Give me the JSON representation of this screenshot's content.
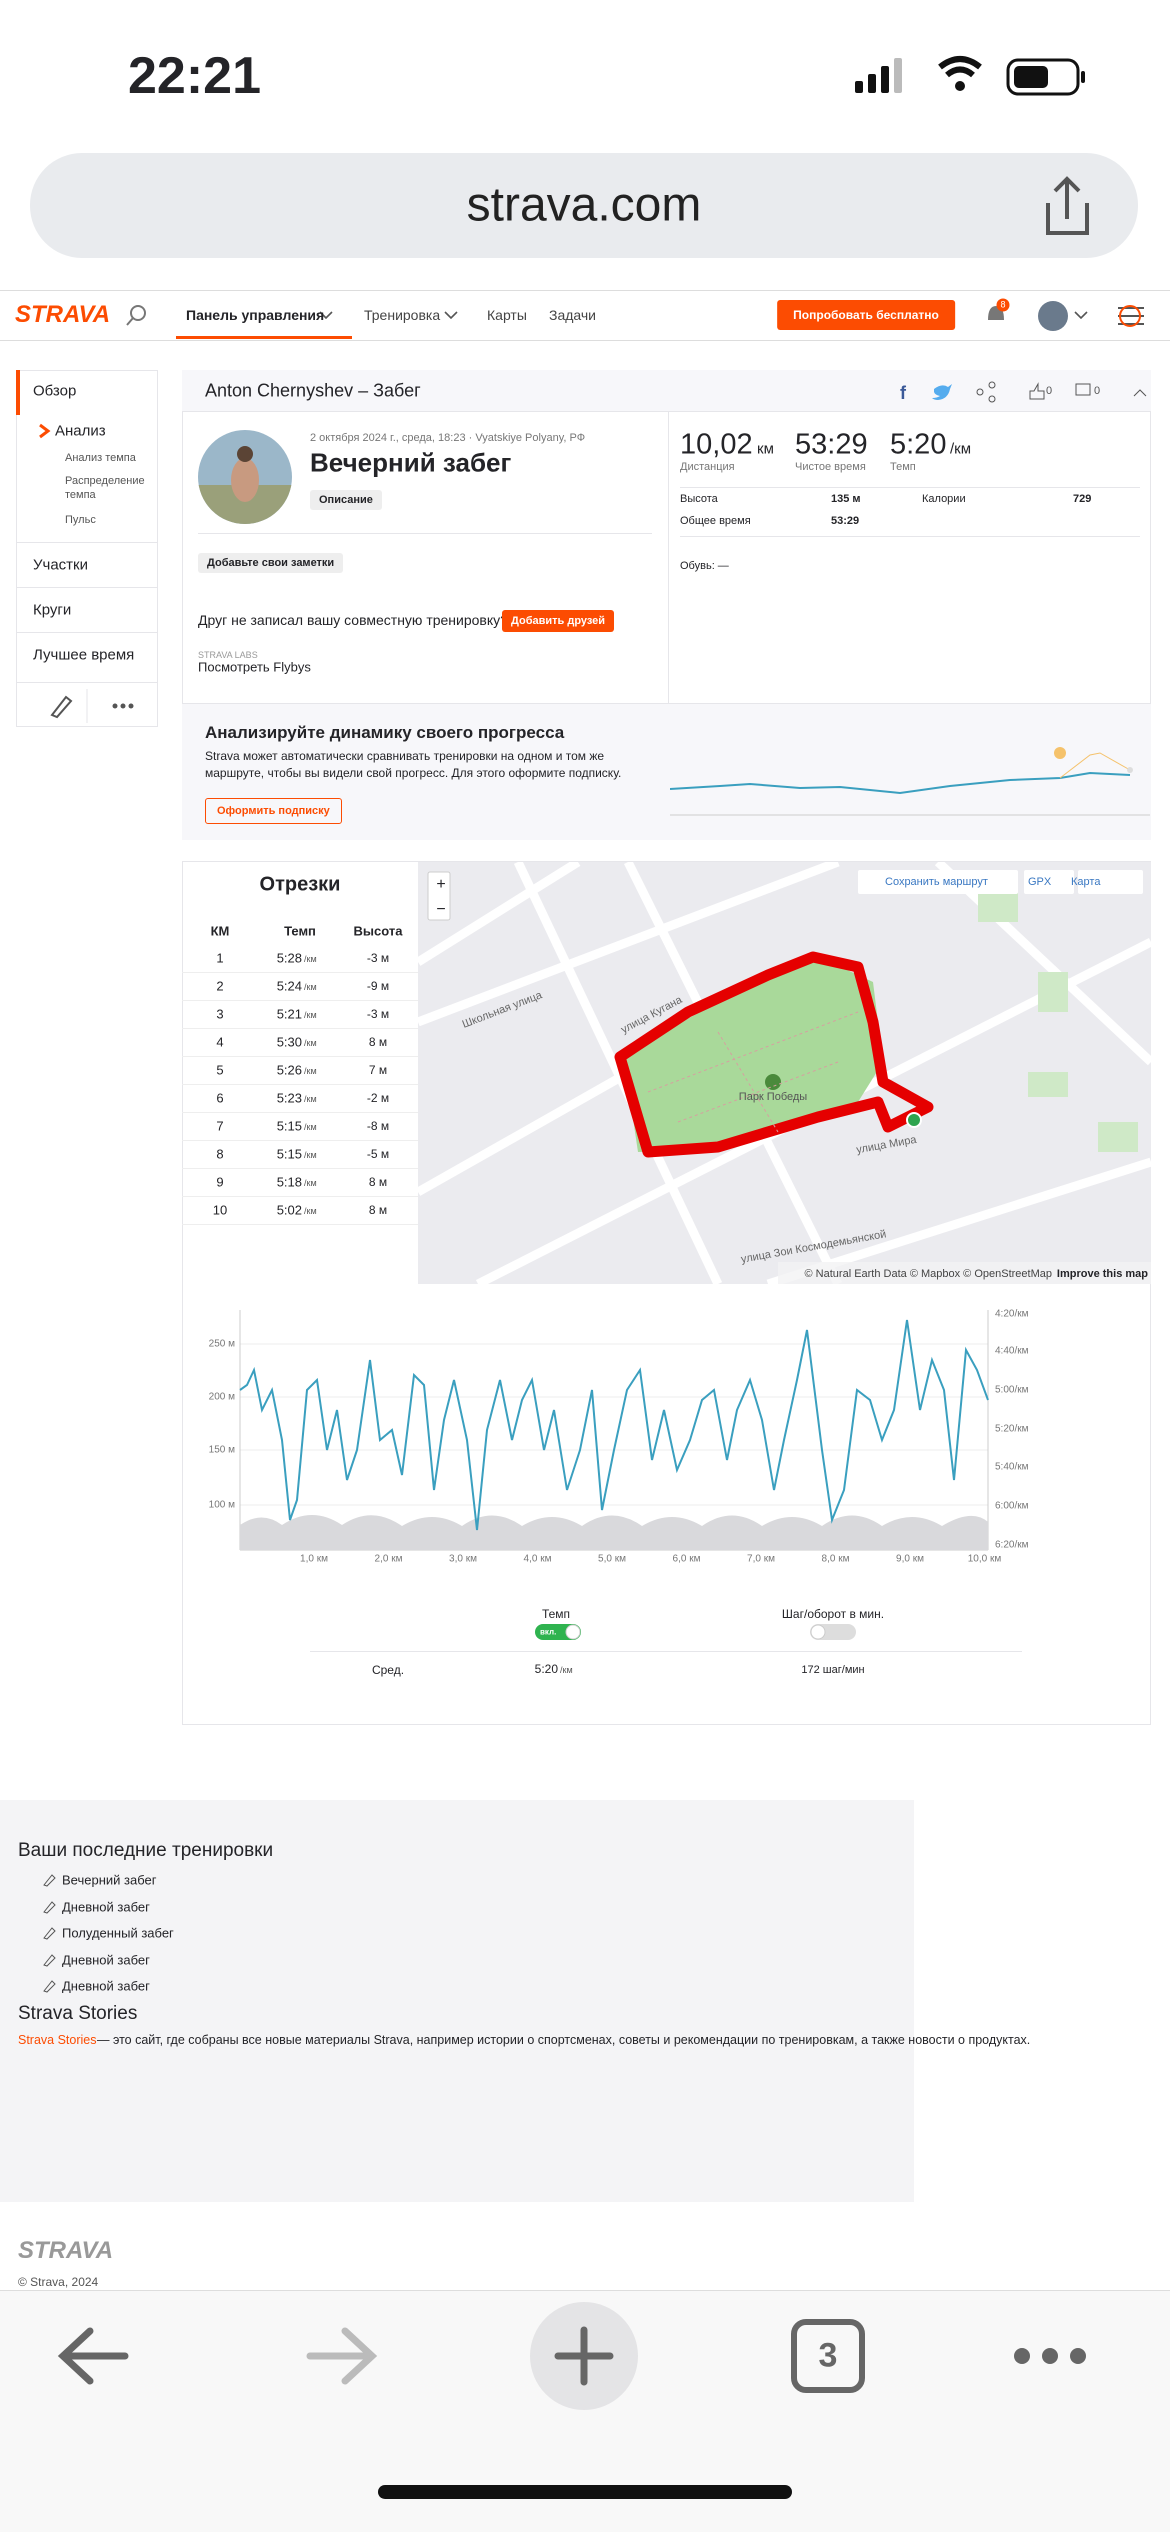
{
  "status_bar": {
    "time": "22:21"
  },
  "browser": {
    "url": "strava.com",
    "tab_count": "3"
  },
  "nav": {
    "logo": "STRAVA",
    "items": [
      "Панель управления",
      "Тренировка",
      "Карты",
      "Задачи"
    ],
    "cta": "Попробовать бесплатно",
    "notifications": "8"
  },
  "sidebar": {
    "overview": "Обзор",
    "analysis": "Анализ",
    "sub": [
      "Анализ темпа",
      "Распределение темпа",
      "Пульс"
    ],
    "items": [
      "Участки",
      "Круги",
      "Лучшее время"
    ]
  },
  "activity": {
    "header": "Anton Chernyshev – Забег",
    "kudos": "0",
    "comments": "0",
    "date": "2 октября 2024 г., среда, 18:23 · Vyatskiye Polyany, РФ",
    "title": "Вечерний забег",
    "description_button": "Описание",
    "notes_button": "Добавьте свои заметки",
    "friend_prompt": "Друг не записал вашу совместную тренировку?",
    "add_friends": "Добавить друзей",
    "labs": "STRAVA LABS",
    "flybys": "Посмотреть Flybys",
    "stats": [
      {
        "value": "10,02",
        "unit": "км",
        "label": "Дистанция"
      },
      {
        "value": "53:29",
        "label": "Чистое время"
      },
      {
        "value": "5:20",
        "unit": "/км",
        "label": "Темп"
      }
    ],
    "details": [
      {
        "label": "Высота",
        "value": "135 м"
      },
      {
        "label": "Калории",
        "value": "729"
      },
      {
        "label": "Общее время",
        "value": "53:29"
      }
    ],
    "shoes": "Обувь: —"
  },
  "progress": {
    "title": "Анализируйте динамику своего прогресса",
    "text": [
      "Strava может автоматически сравнивать тренировки на одном и том же",
      "маршруте, чтобы вы видели свой прогресс. Для этого оформите подписку."
    ],
    "button": "Оформить подписку"
  },
  "splits": {
    "title": "Отрезки",
    "headers": [
      "КМ",
      "Темп",
      "Высота"
    ],
    "rows": [
      [
        "1",
        "5:28",
        "/км",
        "-3 м"
      ],
      [
        "2",
        "5:24",
        "/км",
        "-9 м"
      ],
      [
        "3",
        "5:21",
        "/км",
        "-3 м"
      ],
      [
        "4",
        "5:30",
        "/км",
        "8 м"
      ],
      [
        "5",
        "5:26",
        "/км",
        "7 м"
      ],
      [
        "6",
        "5:23",
        "/км",
        "-2 м"
      ],
      [
        "7",
        "5:15",
        "/км",
        "-8 м"
      ],
      [
        "8",
        "5:15",
        "/км",
        "-5 м"
      ],
      [
        "9",
        "5:18",
        "/км",
        "8 м"
      ],
      [
        "10",
        "5:02",
        "/км",
        "8 м"
      ]
    ]
  },
  "map": {
    "zoom_in": "+",
    "zoom_out": "−",
    "save_route": "Сохранить маршрут",
    "gpx": "GPX",
    "map_type": "Карта",
    "attribution": "© Natural Earth Data © Mapbox © OpenStreetMap",
    "improve": "Improve this map",
    "park": "Парк Победы",
    "streets": [
      "Школьная улица",
      "улица Кугана",
      "улица Мира",
      "улица Зои Космодемьянской"
    ]
  },
  "chart": {
    "y_left": [
      "250 м",
      "200 м",
      "150 м",
      "100 м"
    ],
    "y_right": [
      "4:20/км",
      "4:40/км",
      "5:00/км",
      "5:20/км",
      "5:40/км",
      "6:00/км",
      "6:20/км"
    ],
    "x": [
      "1,0 км",
      "2,0 км",
      "3,0 км",
      "4,0 км",
      "5,0 км",
      "6,0 км",
      "7,0 км",
      "8,0 км",
      "9,0 км",
      "10,0 км"
    ],
    "pace_toggle": "Темп",
    "pace_state": "вкл.",
    "cadence_toggle": "Шаг/оборот в мин.",
    "avg_label": "Сред.",
    "avg_pace": "5:20",
    "avg_pace_unit": "/км",
    "avg_cadence": "172 шаг/мин"
  },
  "footer": {
    "recent_title": "Ваши последние тренировки",
    "recent": [
      "Вечерний забег",
      "Дневной забег",
      "Полуденный забег",
      "Дневной забег",
      "Дневной забег"
    ],
    "stories_title": "Strava Stories",
    "stories_link": "Strava Stories",
    "stories_text": " — это сайт, где собраны все новые материалы Strava, например истории о спортсменах, советы и рекомендации по тренировкам, а также новости о продуктах.",
    "logo": "STRAVA",
    "copyright": "© Strava, 2024"
  }
}
